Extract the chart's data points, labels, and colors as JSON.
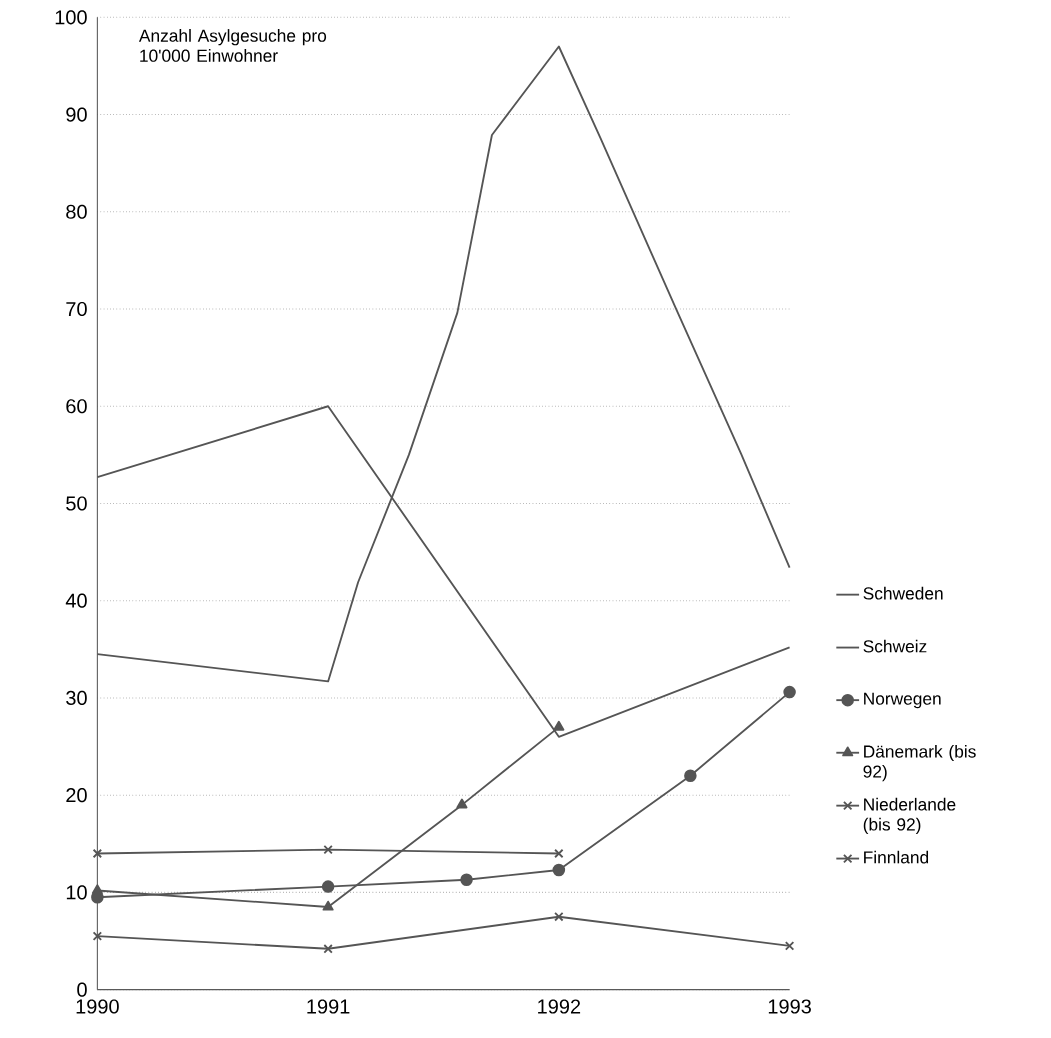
{
  "chart_data": {
    "type": "line",
    "annotations": [
      "Anzahl Asylgesuche pro 10'000 Einwohner"
    ],
    "xlim": [
      1990,
      1993
    ],
    "xticks": [
      1990,
      1991,
      1992,
      1993
    ],
    "ylim": [
      0,
      100
    ],
    "yticks": [
      0,
      10,
      20,
      30,
      40,
      50,
      60,
      70,
      80,
      90,
      100
    ],
    "grid": "y",
    "legend": "right",
    "line_style": "solid",
    "series": [
      {
        "name": "Schweden",
        "color": "#555555",
        "marker": "none",
        "x": [
          1990,
          1991,
          1991.13,
          1991.35,
          1991.56,
          1991.71,
          1992,
          1992.18,
          1992.51,
          1992.79,
          1993
        ],
        "values": [
          34.5,
          31.7,
          41.9,
          55,
          69.6,
          87.9,
          97,
          87.6,
          69.9,
          55.1,
          43.4
        ]
      },
      {
        "name": "Schweiz",
        "color": "#555555",
        "marker": "none",
        "x": [
          1990,
          1991,
          1992,
          1993
        ],
        "values": [
          52.7,
          60,
          26,
          35.2
        ]
      },
      {
        "name": "Norwegen",
        "color": "#555555",
        "marker": "circle",
        "x": [
          1990,
          1991,
          1991.6,
          1992,
          1992.57,
          1993
        ],
        "values": [
          9.5,
          10.6,
          11.3,
          12.3,
          22,
          30.6
        ]
      },
      {
        "name": "Dänemark (bis 92)",
        "color": "#555555",
        "marker": "triangle",
        "x": [
          1990,
          1991,
          1991.58,
          1992
        ],
        "values": [
          10.2,
          8.5,
          19,
          27
        ]
      },
      {
        "name": "Niederlande (bis 92)",
        "color": "#555555",
        "marker": "cross",
        "x": [
          1990,
          1991,
          1992
        ],
        "values": [
          14,
          14.4,
          14
        ]
      },
      {
        "name": "Finnland",
        "color": "#555555",
        "marker": "cross",
        "x": [
          1990,
          1991,
          1992,
          1993
        ],
        "values": [
          5.5,
          4.2,
          7.5,
          4.5
        ]
      }
    ]
  }
}
